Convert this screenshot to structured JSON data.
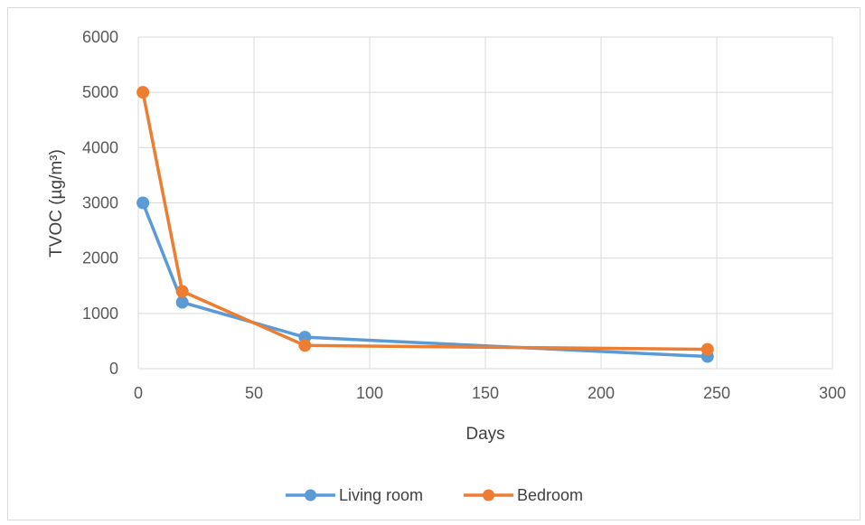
{
  "chart_data": {
    "type": "line",
    "title": "",
    "xlabel": "Days",
    "ylabel": "TVOC (µg/m³)",
    "xlim": [
      0,
      300
    ],
    "ylim": [
      0,
      6000
    ],
    "x_ticks": [
      0,
      50,
      100,
      150,
      200,
      250,
      300
    ],
    "y_ticks": [
      0,
      1000,
      2000,
      3000,
      4000,
      5000,
      6000
    ],
    "grid": true,
    "legend_position": "bottom",
    "series": [
      {
        "name": "Living room",
        "color": "#5b9bd5",
        "x": [
          2,
          19,
          72,
          246
        ],
        "y": [
          3000,
          1200,
          570,
          220
        ]
      },
      {
        "name": "Bedroom",
        "color": "#ed7d31",
        "x": [
          2,
          19,
          72,
          246
        ],
        "y": [
          5000,
          1400,
          420,
          350
        ]
      }
    ]
  }
}
